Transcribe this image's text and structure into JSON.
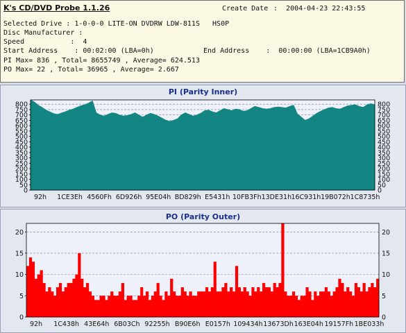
{
  "app": {
    "title": "K's CD/DVD Probe 1.1.26",
    "create_date_label": "Create Date",
    "create_date_value": ":  2004-04-23 22:43:55"
  },
  "info": {
    "selected_drive": "Selected Drive : 1-0-0-0 LITE-ON DVDRW LDW-811S   HS0P",
    "disc_manufacturer": "Disc Manufacturer :",
    "speed": "Speed           :  4",
    "start_address": "Start Address    : 00:02:00 (LBA=0h)",
    "end_address": "End Address    :  00:00:00 (LBA=1CB9A0h)",
    "pi_summary": "PI Max= 836 , Total= 8655749 , Average= 624.513",
    "po_summary": "PO Max= 22 , Total= 36965 , Average= 2.667"
  },
  "colors": {
    "pi_fill": "#138683",
    "po_fill": "#ff0000",
    "plot_bg": "#eef0fa",
    "grid": "#7f7f7f"
  },
  "chart_data": [
    {
      "type": "area",
      "title": "PI (Parity Inner)",
      "xlabel": "",
      "ylabel": "",
      "yticks": [
        0,
        50,
        100,
        150,
        200,
        250,
        300,
        350,
        400,
        450,
        500,
        550,
        600,
        650,
        700,
        750,
        800
      ],
      "ylim": [
        0,
        840
      ],
      "xticks": [
        "92h",
        "1CE3Eh",
        "4560Fh",
        "6D926h",
        "95E04h",
        "BD829h",
        "E5431h",
        "10FB3Fh",
        "13DE31h",
        "16C931h",
        "19B072h",
        "1C8735h"
      ],
      "series": [
        {
          "values": [
            840,
            820,
            790,
            770,
            745,
            728,
            712,
            705,
            718,
            730,
            745,
            755,
            770,
            785,
            795,
            810,
            830,
            720,
            700,
            690,
            705,
            720,
            715,
            700,
            690,
            695,
            705,
            720,
            700,
            680,
            700,
            715,
            705,
            690,
            670,
            650,
            640,
            650,
            665,
            700,
            720,
            705,
            690,
            700,
            715,
            740,
            745,
            730,
            720,
            740,
            760,
            750,
            740,
            755,
            750,
            735,
            740,
            760,
            780,
            770,
            760,
            755,
            760,
            770,
            775,
            770,
            765,
            780,
            790,
            710,
            680,
            650,
            665,
            690,
            715,
            735,
            750,
            765,
            770,
            760,
            755,
            770,
            785,
            790,
            795,
            780,
            770,
            795,
            805,
            795
          ]
        }
      ]
    },
    {
      "type": "bar",
      "title": "PO (Parity Outer)",
      "xlabel": "",
      "ylabel": "",
      "yticks": [
        0,
        5,
        10,
        15,
        20
      ],
      "ylim": [
        0,
        22
      ],
      "xticks": [
        "92h",
        "1C438h",
        "43E64h",
        "6B03Ch",
        "92255h",
        "B90E6h",
        "E0157h",
        "109434h",
        "13673Dh",
        "163E04h",
        "19157Fh",
        "1BE033h"
      ],
      "series": [
        {
          "values": [
            12,
            14,
            13,
            9,
            10,
            11,
            8,
            6,
            7,
            6,
            5,
            7,
            8,
            6,
            7,
            8,
            8,
            9,
            10,
            15,
            9,
            7,
            8,
            6,
            5,
            4,
            4,
            5,
            5,
            4,
            5,
            6,
            5,
            5,
            6,
            8,
            4,
            5,
            5,
            4,
            4,
            5,
            7,
            5,
            6,
            4,
            5,
            6,
            8,
            5,
            4,
            6,
            5,
            9,
            6,
            5,
            5,
            7,
            6,
            5,
            6,
            5,
            5,
            6,
            6,
            6,
            7,
            6,
            7,
            13,
            6,
            6,
            7,
            8,
            6,
            7,
            6,
            12,
            7,
            6,
            7,
            6,
            5,
            7,
            6,
            7,
            6,
            8,
            7,
            7,
            6,
            8,
            7,
            8,
            22,
            6,
            5,
            5,
            6,
            5,
            4,
            5,
            5,
            7,
            6,
            4,
            6,
            5,
            6,
            6,
            7,
            6,
            5,
            6,
            7,
            9,
            8,
            6,
            7,
            6,
            5,
            8,
            7,
            6,
            8,
            6,
            7,
            8,
            7,
            9
          ]
        }
      ]
    }
  ]
}
